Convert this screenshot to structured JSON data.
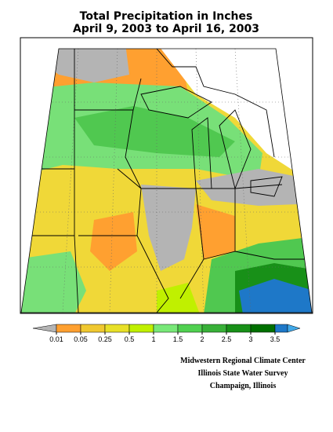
{
  "title": [
    "Total Precipitation in Inches",
    "April 9, 2003 to April 16, 2003"
  ],
  "legend": {
    "ticks": [
      0.01,
      0.05,
      0.25,
      0.5,
      1,
      1.5,
      2,
      2.5,
      3,
      3.5
    ],
    "colors": [
      "#b4b4b4",
      "#ffa030",
      "#f0c830",
      "#e8e028",
      "#c0f000",
      "#78e878",
      "#50d050",
      "#38b038",
      "#189018",
      "#007000",
      "#1e78c8",
      "#40a8e8"
    ]
  },
  "credits": [
    "Midwestern Regional Climate Center",
    "Illinois State Water Survey",
    "Champaign, Illinois"
  ]
}
